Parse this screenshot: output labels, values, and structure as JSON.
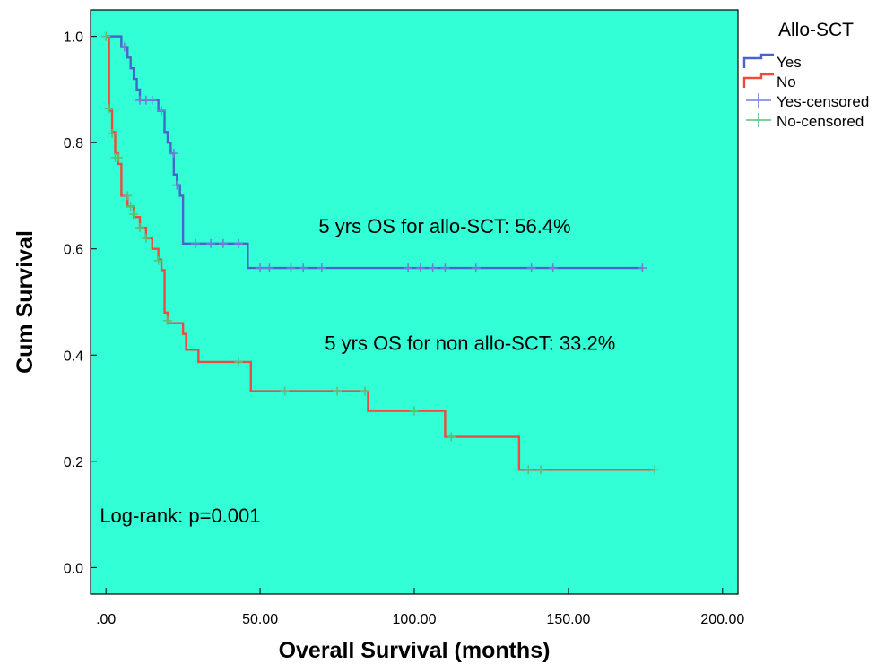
{
  "chart_data": {
    "type": "line",
    "subtype": "kaplan-meier step",
    "xlabel": "Overall Survival (months)",
    "ylabel": "Cum Survival",
    "xlim": [
      -5,
      205
    ],
    "ylim": [
      -0.05,
      1.05
    ],
    "x_ticks": [
      0,
      50,
      100,
      150,
      200
    ],
    "x_tick_labels": [
      ".00",
      "50.00",
      "100.00",
      "150.00",
      "200.00"
    ],
    "y_ticks": [
      0,
      0.2,
      0.4,
      0.6,
      0.8,
      1.0
    ],
    "y_tick_labels": [
      "0.0",
      "0.2",
      "0.4",
      "0.6",
      "0.8",
      "1.0"
    ],
    "grid": false,
    "plot_background": "#33ffd6",
    "legend": {
      "title": "Allo-SCT",
      "placement": "outside-top-right",
      "entries": [
        {
          "label": "Yes",
          "kind": "step",
          "color": "#4a63c9"
        },
        {
          "label": "No",
          "kind": "step",
          "color": "#f04a3c"
        },
        {
          "label": "Yes-censored",
          "kind": "cross",
          "color": "#7080d8"
        },
        {
          "label": "No-censored",
          "kind": "cross",
          "color": "#58c078"
        }
      ]
    },
    "series": [
      {
        "name": "Yes",
        "color": "#4a63c9",
        "censor_color": "#7080d8",
        "steps": [
          [
            0,
            1.0
          ],
          [
            5,
            0.98
          ],
          [
            7,
            0.96
          ],
          [
            8,
            0.94
          ],
          [
            9,
            0.92
          ],
          [
            10,
            0.9
          ],
          [
            11,
            0.88
          ],
          [
            17,
            0.86
          ],
          [
            19,
            0.82
          ],
          [
            20,
            0.8
          ],
          [
            21,
            0.78
          ],
          [
            22,
            0.74
          ],
          [
            23,
            0.72
          ],
          [
            24,
            0.7
          ],
          [
            25,
            0.61
          ],
          [
            46,
            0.564
          ],
          [
            174,
            0.564
          ]
        ],
        "censored": [
          [
            6,
            0.98
          ],
          [
            11,
            0.88
          ],
          [
            13,
            0.88
          ],
          [
            15,
            0.88
          ],
          [
            18,
            0.86
          ],
          [
            22,
            0.78
          ],
          [
            23,
            0.72
          ],
          [
            29,
            0.61
          ],
          [
            34,
            0.61
          ],
          [
            38,
            0.61
          ],
          [
            43,
            0.61
          ],
          [
            50,
            0.564
          ],
          [
            53,
            0.564
          ],
          [
            60,
            0.564
          ],
          [
            64,
            0.564
          ],
          [
            70,
            0.564
          ],
          [
            98,
            0.564
          ],
          [
            102,
            0.564
          ],
          [
            106,
            0.564
          ],
          [
            110,
            0.564
          ],
          [
            120,
            0.564
          ],
          [
            138,
            0.564
          ],
          [
            145,
            0.564
          ],
          [
            174,
            0.564
          ]
        ]
      },
      {
        "name": "No",
        "color": "#f04a3c",
        "censor_color": "#58c078",
        "steps": [
          [
            0,
            1.0
          ],
          [
            1,
            0.86
          ],
          [
            2,
            0.82
          ],
          [
            3,
            0.78
          ],
          [
            4,
            0.76
          ],
          [
            5,
            0.7
          ],
          [
            7,
            0.68
          ],
          [
            9,
            0.66
          ],
          [
            11,
            0.64
          ],
          [
            13,
            0.62
          ],
          [
            15,
            0.6
          ],
          [
            17,
            0.58
          ],
          [
            18,
            0.56
          ],
          [
            19,
            0.48
          ],
          [
            20,
            0.46
          ],
          [
            25,
            0.44
          ],
          [
            26,
            0.41
          ],
          [
            30,
            0.387
          ],
          [
            47,
            0.332
          ],
          [
            85,
            0.295
          ],
          [
            110,
            0.246
          ],
          [
            134,
            0.184
          ],
          [
            178,
            0.184
          ]
        ],
        "censored": [
          [
            0,
            1.0
          ],
          [
            1,
            0.864
          ],
          [
            2,
            0.817
          ],
          [
            3,
            0.772
          ],
          [
            4,
            0.772
          ],
          [
            7,
            0.7
          ],
          [
            8,
            0.68
          ],
          [
            9,
            0.665
          ],
          [
            11,
            0.64
          ],
          [
            13,
            0.62
          ],
          [
            17,
            0.578
          ],
          [
            20,
            0.465
          ],
          [
            43,
            0.387
          ],
          [
            58,
            0.332
          ],
          [
            75,
            0.332
          ],
          [
            84,
            0.332
          ],
          [
            100,
            0.295
          ],
          [
            112,
            0.246
          ],
          [
            137,
            0.184
          ],
          [
            141,
            0.184
          ],
          [
            178,
            0.184
          ]
        ]
      }
    ],
    "annotations": [
      {
        "text": "5 yrs OS for allo-SCT: 56.4%",
        "x": 69,
        "y": 0.63
      },
      {
        "text": "5 yrs OS for non allo-SCT: 33.2%",
        "x": 71,
        "y": 0.41
      },
      {
        "text": "Log-rank: p=0.001",
        "x": -2,
        "y": 0.085
      }
    ]
  }
}
